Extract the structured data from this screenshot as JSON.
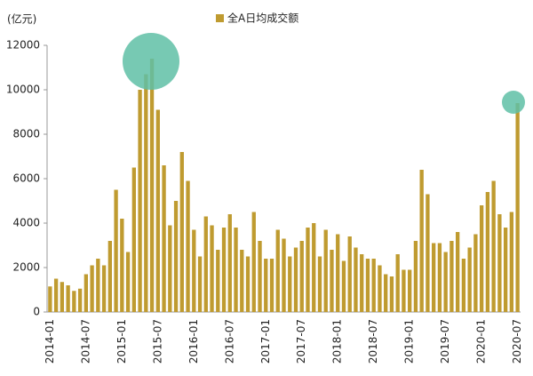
{
  "chart_data": {
    "type": "bar",
    "y_label": "(亿元)",
    "series": [
      {
        "name": "全A日均成交额",
        "color": "#bf9b30",
        "values": [
          1150,
          1500,
          1350,
          1200,
          950,
          1050,
          1700,
          2100,
          2400,
          2100,
          3200,
          5500,
          4200,
          2700,
          6500,
          10000,
          10700,
          11400,
          9100,
          6600,
          3900,
          5000,
          7200,
          5900,
          3700,
          2500,
          4300,
          3900,
          2800,
          3800,
          4400,
          3800,
          2800,
          2500,
          4500,
          3200,
          2400,
          2400,
          3700,
          3300,
          2500,
          2900,
          3200,
          3800,
          4000,
          2500,
          3700,
          2800,
          3500,
          2300,
          3400,
          2900,
          2600,
          2400,
          2400,
          2100,
          1700,
          1600,
          2600,
          1900,
          1900,
          3200,
          6400,
          5300,
          3100,
          3100,
          2700,
          3200,
          3600,
          2400,
          2900,
          3500,
          4800,
          5400,
          5900,
          4400,
          3800,
          4500,
          9400
        ]
      }
    ],
    "categories": [
      "2014-01",
      null,
      null,
      null,
      null,
      null,
      "2014-07",
      null,
      null,
      null,
      null,
      null,
      "2015-01",
      null,
      null,
      null,
      null,
      null,
      "2015-07",
      null,
      null,
      null,
      null,
      null,
      "2016-01",
      null,
      null,
      null,
      null,
      null,
      "2016-07",
      null,
      null,
      null,
      null,
      null,
      "2017-01",
      null,
      null,
      null,
      null,
      null,
      "2017-07",
      null,
      null,
      null,
      null,
      null,
      "2018-01",
      null,
      null,
      null,
      null,
      null,
      "2018-07",
      null,
      null,
      null,
      null,
      null,
      "2019-01",
      null,
      null,
      null,
      null,
      null,
      "2019-07",
      null,
      null,
      null,
      null,
      null,
      "2020-01",
      null,
      null,
      null,
      null,
      null,
      "2020-07"
    ],
    "ylim": [
      0,
      12000
    ],
    "yticks": [
      0,
      2000,
      4000,
      6000,
      8000,
      10000,
      12000
    ],
    "grid": false
  }
}
